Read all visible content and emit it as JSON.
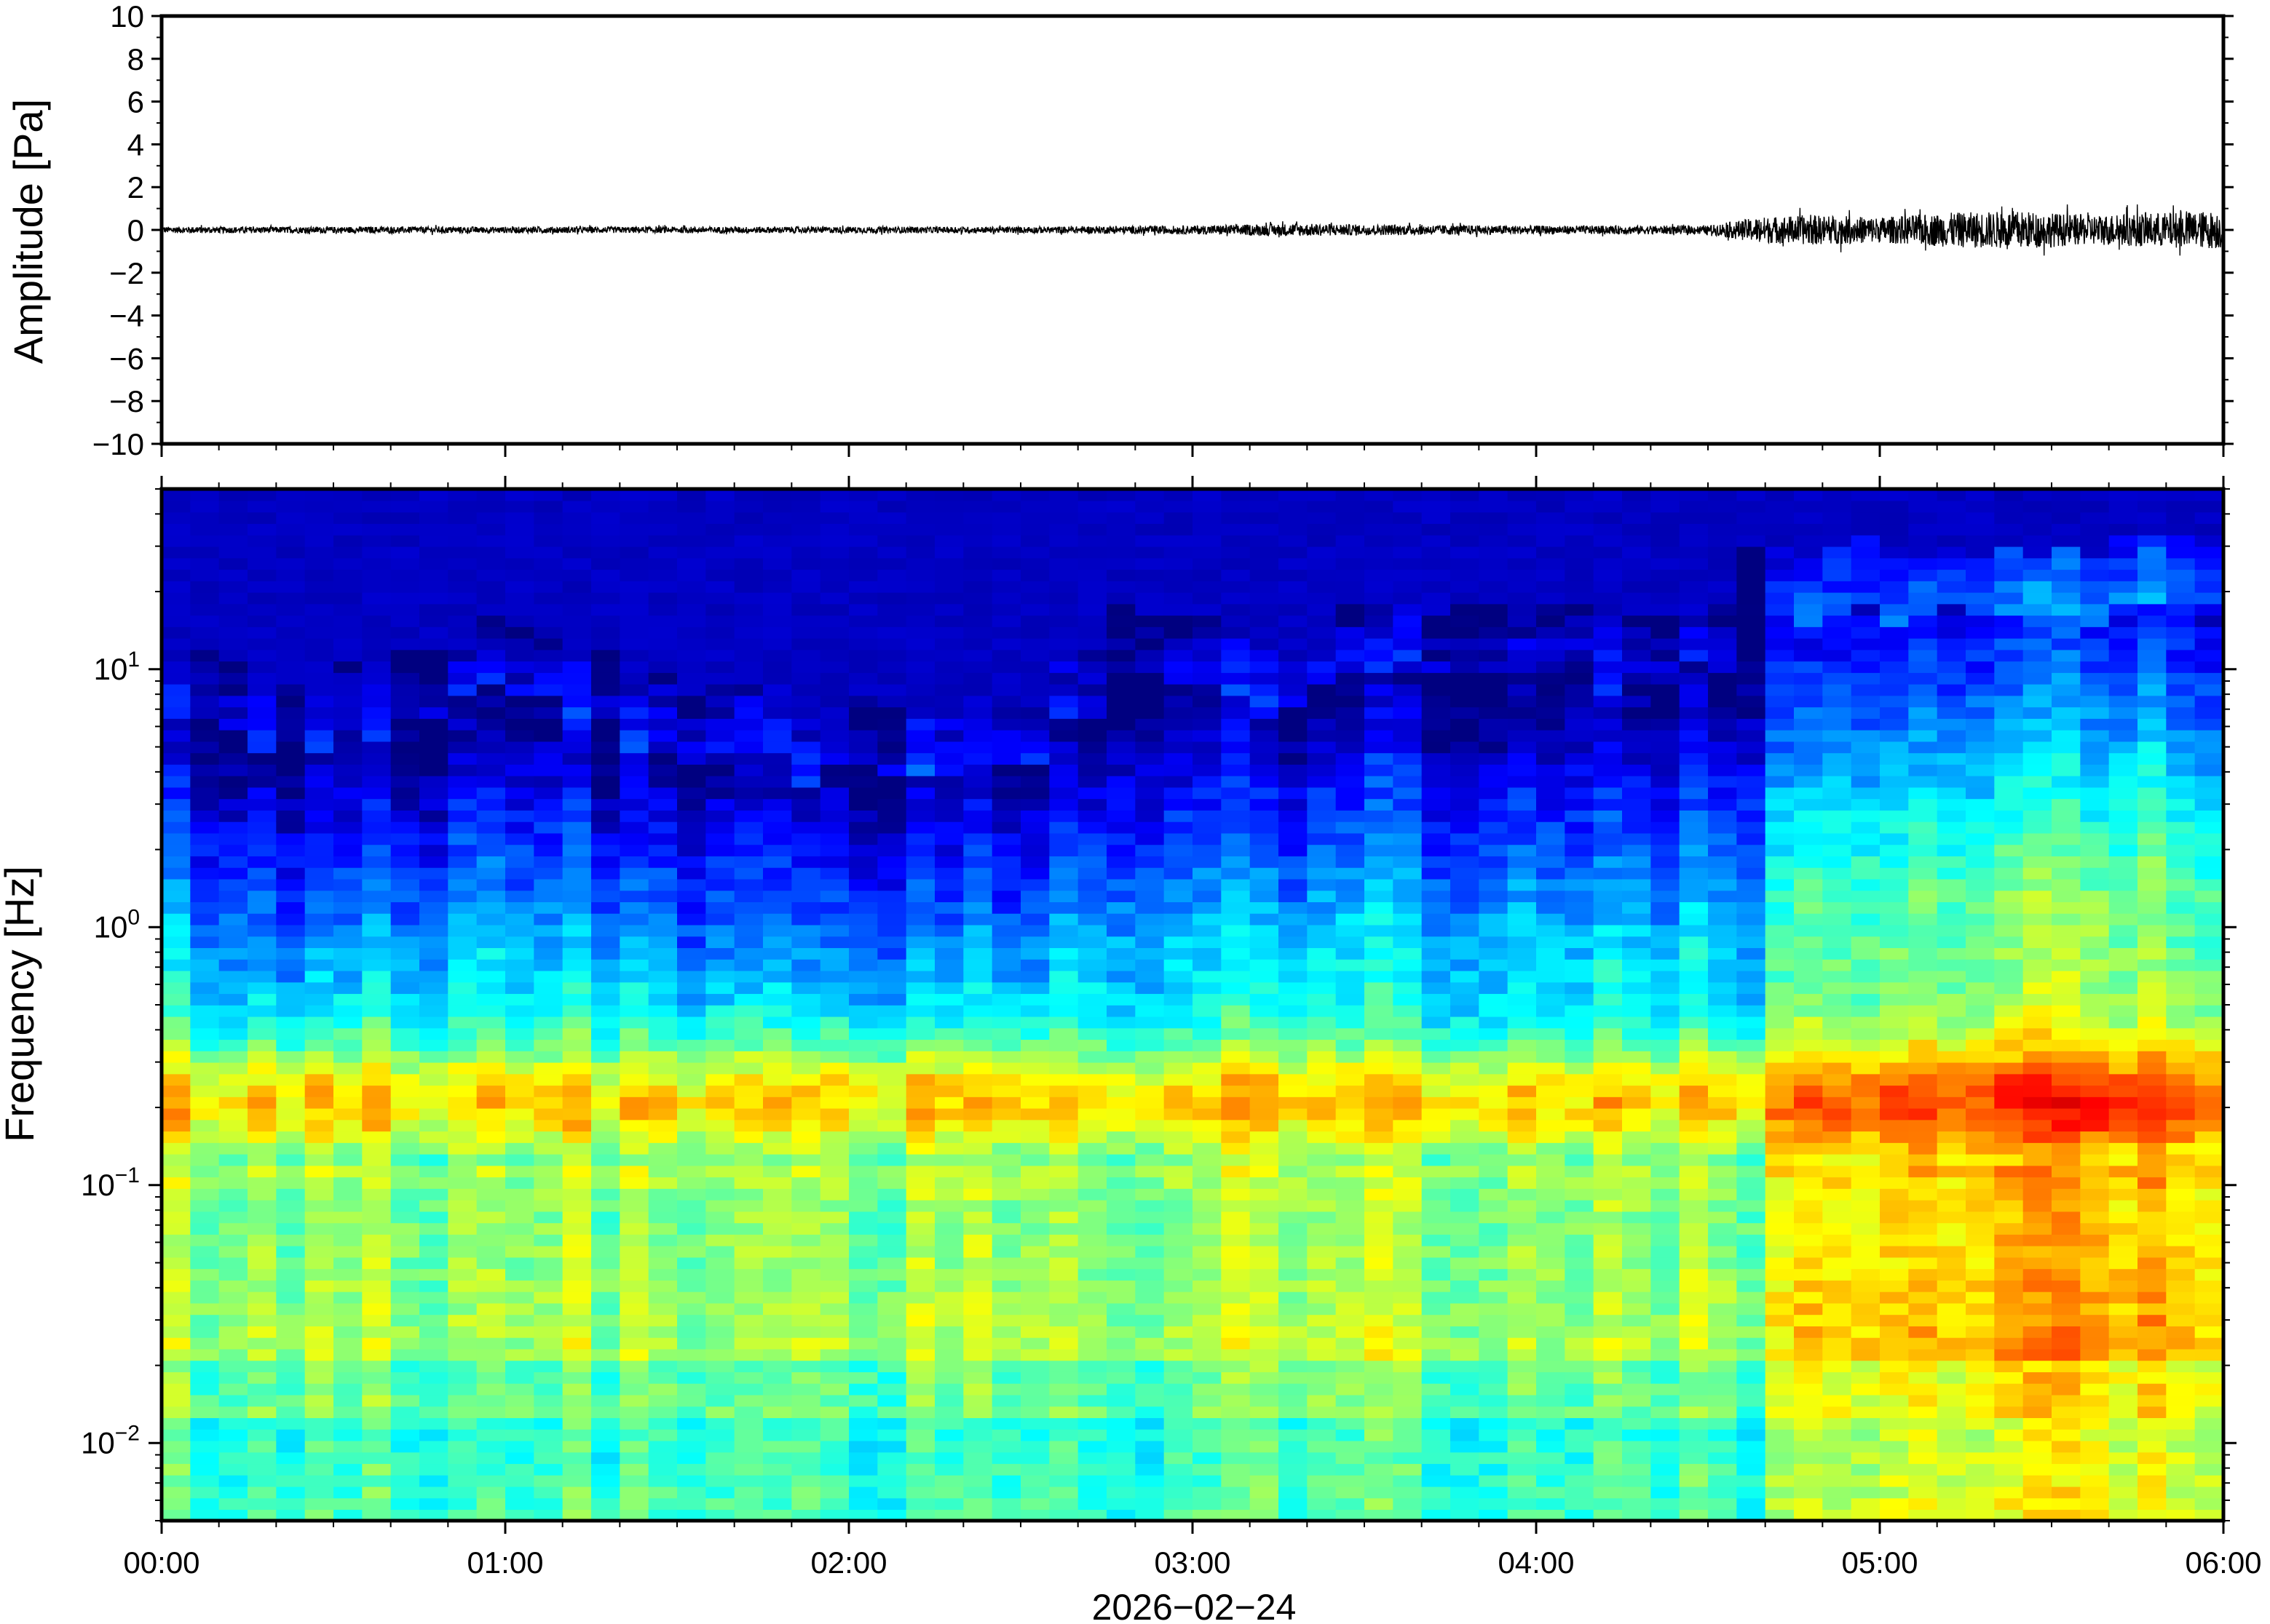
{
  "chart_data": [
    {
      "type": "line",
      "panel": "waveform",
      "ylabel": "Amplitude [Pa]",
      "ylim": [
        -10,
        10
      ],
      "y_ticks": [
        "10",
        "8",
        "6",
        "4",
        "2",
        "0",
        "−2",
        "−4",
        "−6",
        "−8",
        "−10"
      ],
      "y_tick_values": [
        10,
        8,
        6,
        4,
        2,
        0,
        -2,
        -4,
        -6,
        -8,
        -10
      ],
      "xlim": [
        "00:00",
        "06:00"
      ],
      "series": [
        {
          "color": "#000000",
          "envelope": {
            "time_hours": [
              0.0,
              0.5,
              1.0,
              1.5,
              2.0,
              2.5,
              3.0,
              3.3,
              3.5,
              4.0,
              4.5,
              4.65,
              4.8,
              5.0,
              5.2,
              5.4,
              5.6,
              5.8,
              6.0
            ],
            "amplitude_pa": [
              0.15,
              0.15,
              0.15,
              0.15,
              0.15,
              0.15,
              0.2,
              0.3,
              0.25,
              0.2,
              0.2,
              0.6,
              0.7,
              0.6,
              0.8,
              0.9,
              0.7,
              0.8,
              0.9
            ]
          }
        }
      ]
    },
    {
      "type": "heatmap",
      "panel": "spectrogram",
      "ylabel": "Frequency [Hz]",
      "y_scale": "log",
      "ylim": [
        0.005,
        50
      ],
      "y_ticks": [
        {
          "base": "10",
          "exp": "1",
          "value": 10
        },
        {
          "base": "10",
          "exp": "0",
          "value": 1
        },
        {
          "base": "10",
          "exp": "−1",
          "value": 0.1
        },
        {
          "base": "10",
          "exp": "−2",
          "value": 0.01
        }
      ],
      "x_ticks": [
        "00:00",
        "01:00",
        "02:00",
        "03:00",
        "04:00",
        "05:00",
        "06:00"
      ],
      "xlim": [
        0,
        6
      ],
      "date_label": "2026−02−24",
      "colormap": "jet",
      "description_of_regions": {
        "microseism_band_hz": [
          0.15,
          0.3
        ],
        "energy_increase_after_hours": 4.65,
        "upper_energy_edge_hz_by_hour": {
          "time_hours": [
            0.0,
            0.5,
            1.0,
            1.5,
            2.0,
            2.5,
            2.75,
            3.0,
            3.2,
            3.5,
            4.0,
            4.5,
            4.65,
            5.0,
            5.5,
            6.0
          ],
          "frequency_hz": [
            6,
            5,
            9,
            5,
            4,
            4,
            9,
            9,
            6,
            10,
            9,
            10,
            18,
            16,
            16,
            20
          ]
        }
      }
    }
  ]
}
